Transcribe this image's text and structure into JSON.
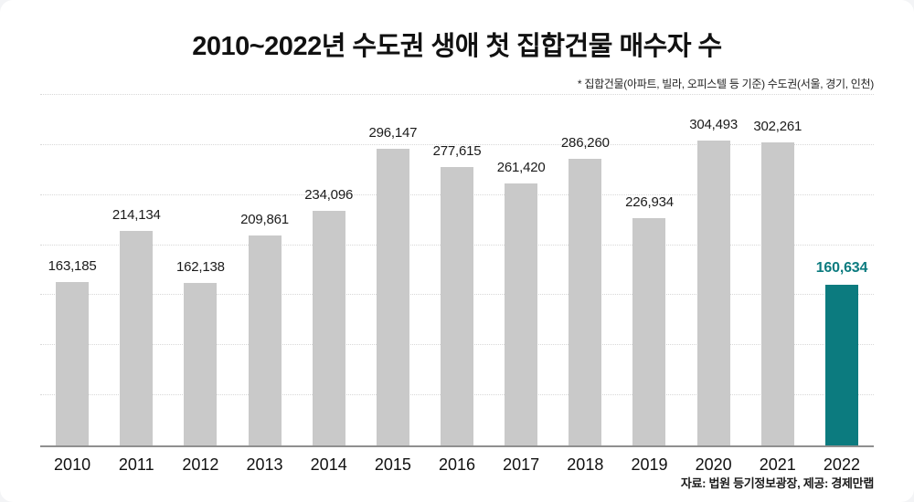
{
  "chart_data": {
    "type": "bar",
    "title": "2010~2022년 수도권 생애 첫 집합건물 매수자 수",
    "note": "* 집합건물(아파트, 빌라, 오피스텔 등 기준) 수도권(서울, 경기, 인천)",
    "source": "자료: 법원 등기정보광장, 제공: 경제만랩",
    "categories": [
      "2010",
      "2011",
      "2012",
      "2013",
      "2014",
      "2015",
      "2016",
      "2017",
      "2018",
      "2019",
      "2020",
      "2021",
      "2022"
    ],
    "values": [
      163185,
      214134,
      162138,
      209861,
      234096,
      296147,
      277615,
      261420,
      286260,
      226934,
      304493,
      302261,
      160634
    ],
    "value_labels": [
      "163,185",
      "214,134",
      "162,138",
      "209,861",
      "234,096",
      "296,147",
      "277,615",
      "261,420",
      "286,260",
      "226,934",
      "304,493",
      "302,261",
      "160,634"
    ],
    "highlight_index": 12,
    "bar_color": "#c9c9c9",
    "highlight_color": "#0c7b7f",
    "xlabel": "",
    "ylabel": "",
    "ylim": [
      0,
      350000
    ],
    "grid_step": 50000,
    "grid": true,
    "legend": false
  }
}
